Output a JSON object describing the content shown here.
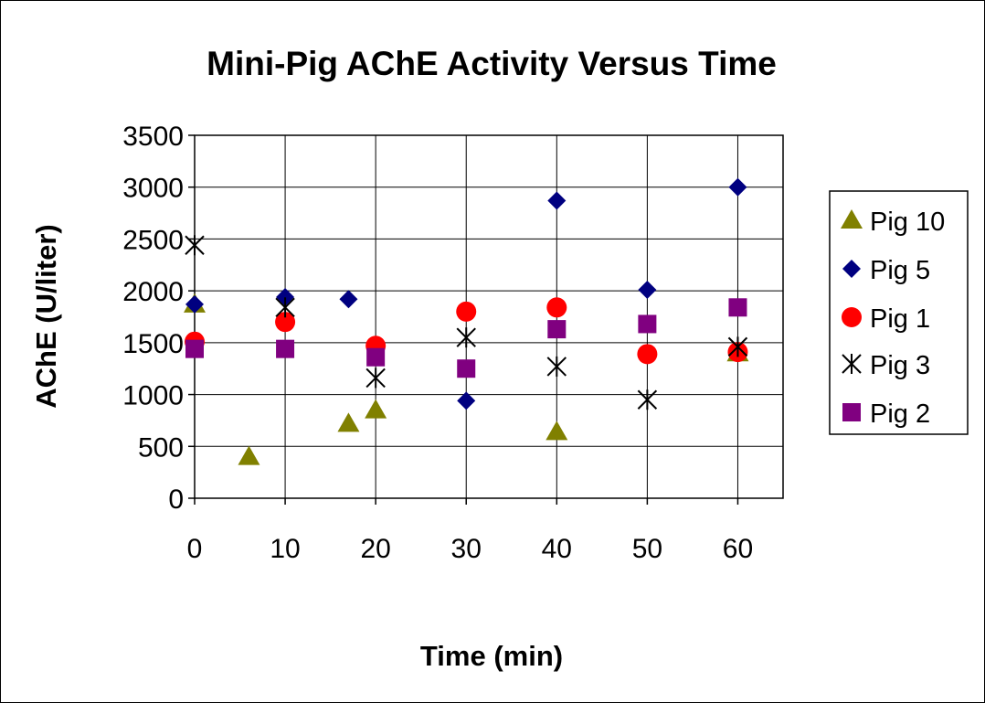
{
  "chart_data": {
    "type": "scatter",
    "title": "Mini-Pig AChE Activity Versus Time",
    "xlabel": "Time (min)",
    "ylabel": "AChE (U/liter)",
    "xlim": [
      0,
      65
    ],
    "ylim": [
      0,
      3500
    ],
    "x_ticks": [
      0,
      10,
      20,
      30,
      40,
      50,
      60
    ],
    "y_ticks": [
      0,
      500,
      1000,
      1500,
      2000,
      2500,
      3000,
      3500
    ],
    "grid": true,
    "legend_position": "right",
    "series": [
      {
        "name": "Pig 10",
        "marker": "triangle",
        "color": "#808000",
        "points": [
          [
            0,
            1870
          ],
          [
            6,
            400
          ],
          [
            17,
            720
          ],
          [
            20,
            850
          ],
          [
            40,
            640
          ],
          [
            60,
            1400
          ]
        ]
      },
      {
        "name": "Pig 5",
        "marker": "diamond",
        "color": "#000080",
        "points": [
          [
            0,
            1870
          ],
          [
            10,
            1940
          ],
          [
            17,
            1920
          ],
          [
            30,
            940
          ],
          [
            40,
            2870
          ],
          [
            50,
            2010
          ],
          [
            60,
            3000
          ]
        ]
      },
      {
        "name": "Pig 1",
        "marker": "circle",
        "color": "#ff0000",
        "points": [
          [
            0,
            1510
          ],
          [
            10,
            1700
          ],
          [
            20,
            1470
          ],
          [
            30,
            1800
          ],
          [
            40,
            1840
          ],
          [
            50,
            1390
          ],
          [
            60,
            1410
          ]
        ]
      },
      {
        "name": "Pig 3",
        "marker": "asterisk",
        "color": "#000000",
        "points": [
          [
            0,
            2440
          ],
          [
            10,
            1840
          ],
          [
            20,
            1160
          ],
          [
            30,
            1550
          ],
          [
            40,
            1270
          ],
          [
            50,
            950
          ],
          [
            60,
            1460
          ]
        ]
      },
      {
        "name": "Pig 2",
        "marker": "square",
        "color": "#800080",
        "points": [
          [
            0,
            1440
          ],
          [
            10,
            1440
          ],
          [
            20,
            1360
          ],
          [
            30,
            1250
          ],
          [
            40,
            1630
          ],
          [
            50,
            1680
          ],
          [
            60,
            1840
          ]
        ]
      }
    ]
  }
}
